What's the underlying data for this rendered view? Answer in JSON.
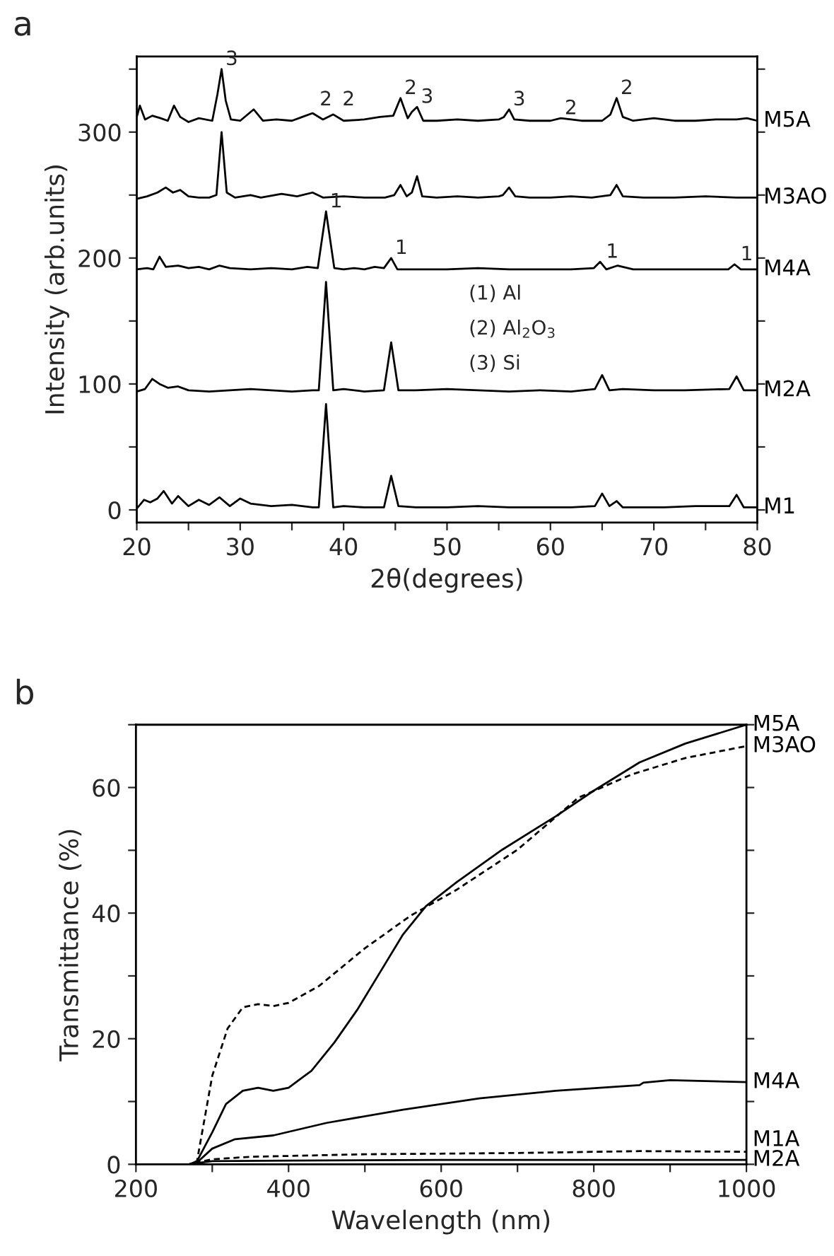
{
  "chart_data": [
    {
      "type": "line",
      "title": "a",
      "xlabel": "2θ(degrees)",
      "ylabel": "Intensity (arb.units)",
      "xlim": [
        20,
        80
      ],
      "ylim": [
        -10,
        360
      ],
      "xticks": [
        20,
        {
          "value": 25,
          "label": null
        },
        30,
        {
          "value": 35,
          "label": null
        },
        40,
        {
          "value": 45,
          "label": null
        },
        50,
        {
          "value": 55,
          "label": null
        },
        60,
        {
          "value": 65,
          "label": null
        },
        70,
        {
          "value": 75,
          "label": null
        },
        80
      ],
      "yticks": [
        0,
        {
          "value": 50,
          "label": null
        },
        100,
        {
          "value": 150,
          "label": null
        },
        200,
        {
          "value": 250,
          "label": null
        },
        300,
        {
          "value": 350,
          "label": null
        }
      ],
      "grid": false,
      "legend": false,
      "series": [
        {
          "name": "M5A",
          "color": "#000000",
          "x": [
            20,
            20.3,
            20.8,
            21.5,
            22.3,
            23.0,
            23.6,
            24.2,
            25,
            26,
            27.3,
            27.8,
            28.2,
            28.6,
            29.1,
            30,
            31.3,
            32.2,
            33.5,
            35,
            36,
            37,
            38,
            39,
            40,
            42,
            43.5,
            44.8,
            45.5,
            46.2,
            46.6,
            47.1,
            47.7,
            49,
            51,
            53,
            55,
            55.5,
            56,
            56.5,
            58,
            60,
            61,
            63,
            65,
            65.8,
            66.4,
            67,
            68,
            70,
            72,
            74,
            76,
            78,
            79,
            80
          ],
          "values": [
            312,
            321,
            310,
            313,
            311,
            309,
            321,
            312,
            308,
            311,
            309,
            330,
            350,
            325,
            310,
            309,
            318,
            309,
            310,
            309,
            312,
            315,
            310,
            314,
            309,
            310,
            312,
            313,
            327,
            311,
            316,
            320,
            309,
            309,
            310,
            309,
            310,
            312,
            318,
            310,
            309,
            309,
            311,
            309,
            309,
            314,
            327,
            312,
            309,
            311,
            309,
            309,
            310,
            310,
            311,
            309
          ]
        },
        {
          "name": "M3AO",
          "color": "#000000",
          "x": [
            20,
            21,
            22,
            22.8,
            23.5,
            24.2,
            25,
            26,
            27,
            27.7,
            28.2,
            28.7,
            29.5,
            31,
            32,
            34,
            35.5,
            37,
            38,
            40,
            42,
            44,
            44.9,
            45.5,
            46.1,
            46.6,
            47.1,
            47.6,
            49,
            51,
            53,
            55,
            55.4,
            56,
            56.6,
            58,
            60,
            62,
            64,
            65.8,
            66.4,
            67,
            69,
            72,
            75,
            78,
            80
          ],
          "values": [
            247,
            249,
            252,
            256,
            252,
            254,
            249,
            248,
            248,
            250,
            300,
            252,
            248,
            250,
            248,
            251,
            249,
            252,
            248,
            249,
            248,
            248,
            250,
            258,
            249,
            252,
            265,
            249,
            248,
            249,
            248,
            249,
            250,
            256,
            249,
            248,
            248,
            249,
            248,
            250,
            258,
            249,
            248,
            248,
            249,
            248,
            248
          ]
        },
        {
          "name": "M4A",
          "color": "#000000",
          "x": [
            20,
            21,
            21.6,
            22.2,
            22.8,
            24,
            25,
            26,
            27,
            28,
            29,
            31,
            33,
            35,
            36.5,
            37.5,
            38.3,
            39.1,
            40,
            41,
            42,
            43,
            43.9,
            44.6,
            45.2,
            47,
            50,
            53,
            56,
            59,
            62,
            64.2,
            64.8,
            65.4,
            66.5,
            68,
            71,
            74,
            77.2,
            77.8,
            78.4,
            80
          ],
          "values": [
            191,
            192,
            191,
            201,
            193,
            194,
            192,
            193,
            191,
            194,
            192,
            191,
            192,
            191,
            193,
            192,
            237,
            192,
            191,
            192,
            191,
            193,
            192,
            200,
            191,
            191,
            191,
            192,
            191,
            191,
            191,
            192,
            197,
            191,
            194,
            191,
            191,
            191,
            191,
            195,
            191,
            191
          ]
        },
        {
          "name": "M2A",
          "color": "#000000",
          "x": [
            20,
            20.8,
            21.5,
            22.2,
            23,
            24,
            25,
            27,
            29,
            31,
            33,
            35,
            37,
            37.6,
            38.3,
            39,
            40,
            42,
            43.9,
            44.6,
            45.3,
            47,
            50,
            53,
            56,
            59,
            62,
            64.3,
            65,
            65.7,
            67,
            70,
            73,
            77.3,
            78,
            78.7,
            80
          ],
          "values": [
            94,
            96,
            104,
            100,
            97,
            98,
            95,
            94,
            95,
            96,
            95,
            94,
            95,
            95,
            181,
            95,
            96,
            94,
            95,
            133,
            95,
            95,
            96,
            95,
            94,
            95,
            94,
            96,
            107,
            95,
            96,
            95,
            95,
            96,
            106,
            95,
            95
          ]
        },
        {
          "name": "M1",
          "color": "#000000",
          "x": [
            20,
            20.7,
            21.3,
            22,
            22.6,
            23.4,
            24,
            25,
            26,
            27,
            28,
            29,
            30,
            31,
            33,
            35,
            37,
            37.6,
            38.3,
            39,
            40,
            42,
            43.9,
            44.6,
            45.3,
            47,
            50,
            53,
            56,
            59,
            62,
            64.3,
            65,
            65.7,
            66.4,
            67,
            68.5,
            71,
            74,
            77.3,
            78,
            78.7,
            80
          ],
          "values": [
            1,
            8,
            6,
            9,
            15,
            5,
            11,
            3,
            8,
            4,
            10,
            3,
            9,
            5,
            3,
            4,
            2,
            2,
            84,
            2,
            3,
            2,
            2,
            27,
            3,
            2,
            2,
            3,
            2,
            2,
            2,
            3,
            13,
            3,
            7,
            2,
            2,
            2,
            3,
            3,
            12,
            2,
            2
          ]
        }
      ],
      "annotations": [
        {
          "text": "3",
          "x": 28.2,
          "y": 350
        },
        {
          "text": "2",
          "x": 37.3,
          "y": 318
        },
        {
          "text": "2",
          "x": 39.5,
          "y": 318
        },
        {
          "text": "2",
          "x": 45.5,
          "y": 327
        },
        {
          "text": "3",
          "x": 47.1,
          "y": 320
        },
        {
          "text": "3",
          "x": 56,
          "y": 318
        },
        {
          "text": "2",
          "x": 61,
          "y": 311
        },
        {
          "text": "2",
          "x": 66.4,
          "y": 327
        },
        {
          "text": "1",
          "x": 38.3,
          "y": 237
        },
        {
          "text": "1",
          "x": 44.6,
          "y": 200
        },
        {
          "text": "1",
          "x": 65,
          "y": 197
        },
        {
          "text": "1",
          "x": 78,
          "y": 195
        },
        "(1) Al",
        "(2) Al$_{2}$O$_{3}$",
        "(3) Si"
      ]
    },
    {
      "type": "line",
      "title": "b",
      "xlabel": "Wavelength (nm)",
      "ylabel": "Transmittance (%)",
      "xlim": [
        200,
        1000
      ],
      "ylim": [
        0,
        70
      ],
      "xticks": [
        200,
        {
          "value": 300,
          "label": null
        },
        400,
        {
          "value": 500,
          "label": null
        },
        600,
        {
          "value": 700,
          "label": null
        },
        800,
        {
          "value": 900,
          "label": null
        },
        1000
      ],
      "yticks": [
        0,
        {
          "value": 10,
          "label": null
        },
        20,
        {
          "value": 30,
          "label": null
        },
        40,
        {
          "value": 50,
          "label": null
        },
        60,
        {
          "value": 70,
          "label": null
        }
      ],
      "grid": false,
      "legend": false,
      "series": [
        {
          "name": "M5A",
          "color": "#000000",
          "line_style": "solid",
          "x": [
            200,
            270,
            280,
            300,
            318,
            340,
            360,
            380,
            400,
            430,
            460,
            490,
            520,
            550,
            580,
            620,
            680,
            750,
            800,
            860,
            920,
            1000
          ],
          "values": [
            0,
            0,
            0.5,
            5.1,
            9.6,
            11.7,
            12.2,
            11.7,
            12.2,
            14.9,
            19.4,
            24.6,
            30.6,
            36.6,
            41.1,
            44.9,
            50.1,
            55.4,
            59.5,
            64,
            67,
            70
          ]
        },
        {
          "name": "M3AO",
          "color": "#000000",
          "line_style": "dashed",
          "x": [
            200,
            270,
            280,
            300,
            320,
            340,
            360,
            380,
            400,
            440,
            500,
            560,
            620,
            700,
            780,
            850,
            920,
            1000
          ],
          "values": [
            0,
            0,
            0.5,
            14.1,
            21.6,
            25,
            25.5,
            25.2,
            25.7,
            28.4,
            34.4,
            39.6,
            43.7,
            50.1,
            58.4,
            62.1,
            64.7,
            66.6
          ]
        },
        {
          "name": "M4A",
          "color": "#000000",
          "line_style": "solid",
          "x": [
            200,
            270,
            280,
            300,
            330,
            380,
            450,
            550,
            650,
            750,
            860,
            865,
            900,
            1000
          ],
          "values": [
            0,
            0,
            0.3,
            2.5,
            4,
            4.6,
            6.6,
            8.7,
            10.5,
            11.7,
            12.6,
            13.0,
            13.4,
            13.1
          ]
        },
        {
          "name": "M1A",
          "color": "#000000",
          "line_style": "dashed",
          "x": [
            200,
            270,
            280,
            300,
            350,
            500,
            700,
            860,
            1000
          ],
          "values": [
            0,
            0,
            0.3,
            0.8,
            1.2,
            1.6,
            1.8,
            2.1,
            2.0
          ]
        },
        {
          "name": "M2A",
          "color": "#000000",
          "line_style": "solid",
          "x": [
            200,
            270,
            280,
            300,
            400,
            600,
            1000
          ],
          "values": [
            0,
            0,
            0.2,
            0.5,
            0.6,
            0.7,
            0.7
          ]
        }
      ]
    }
  ]
}
